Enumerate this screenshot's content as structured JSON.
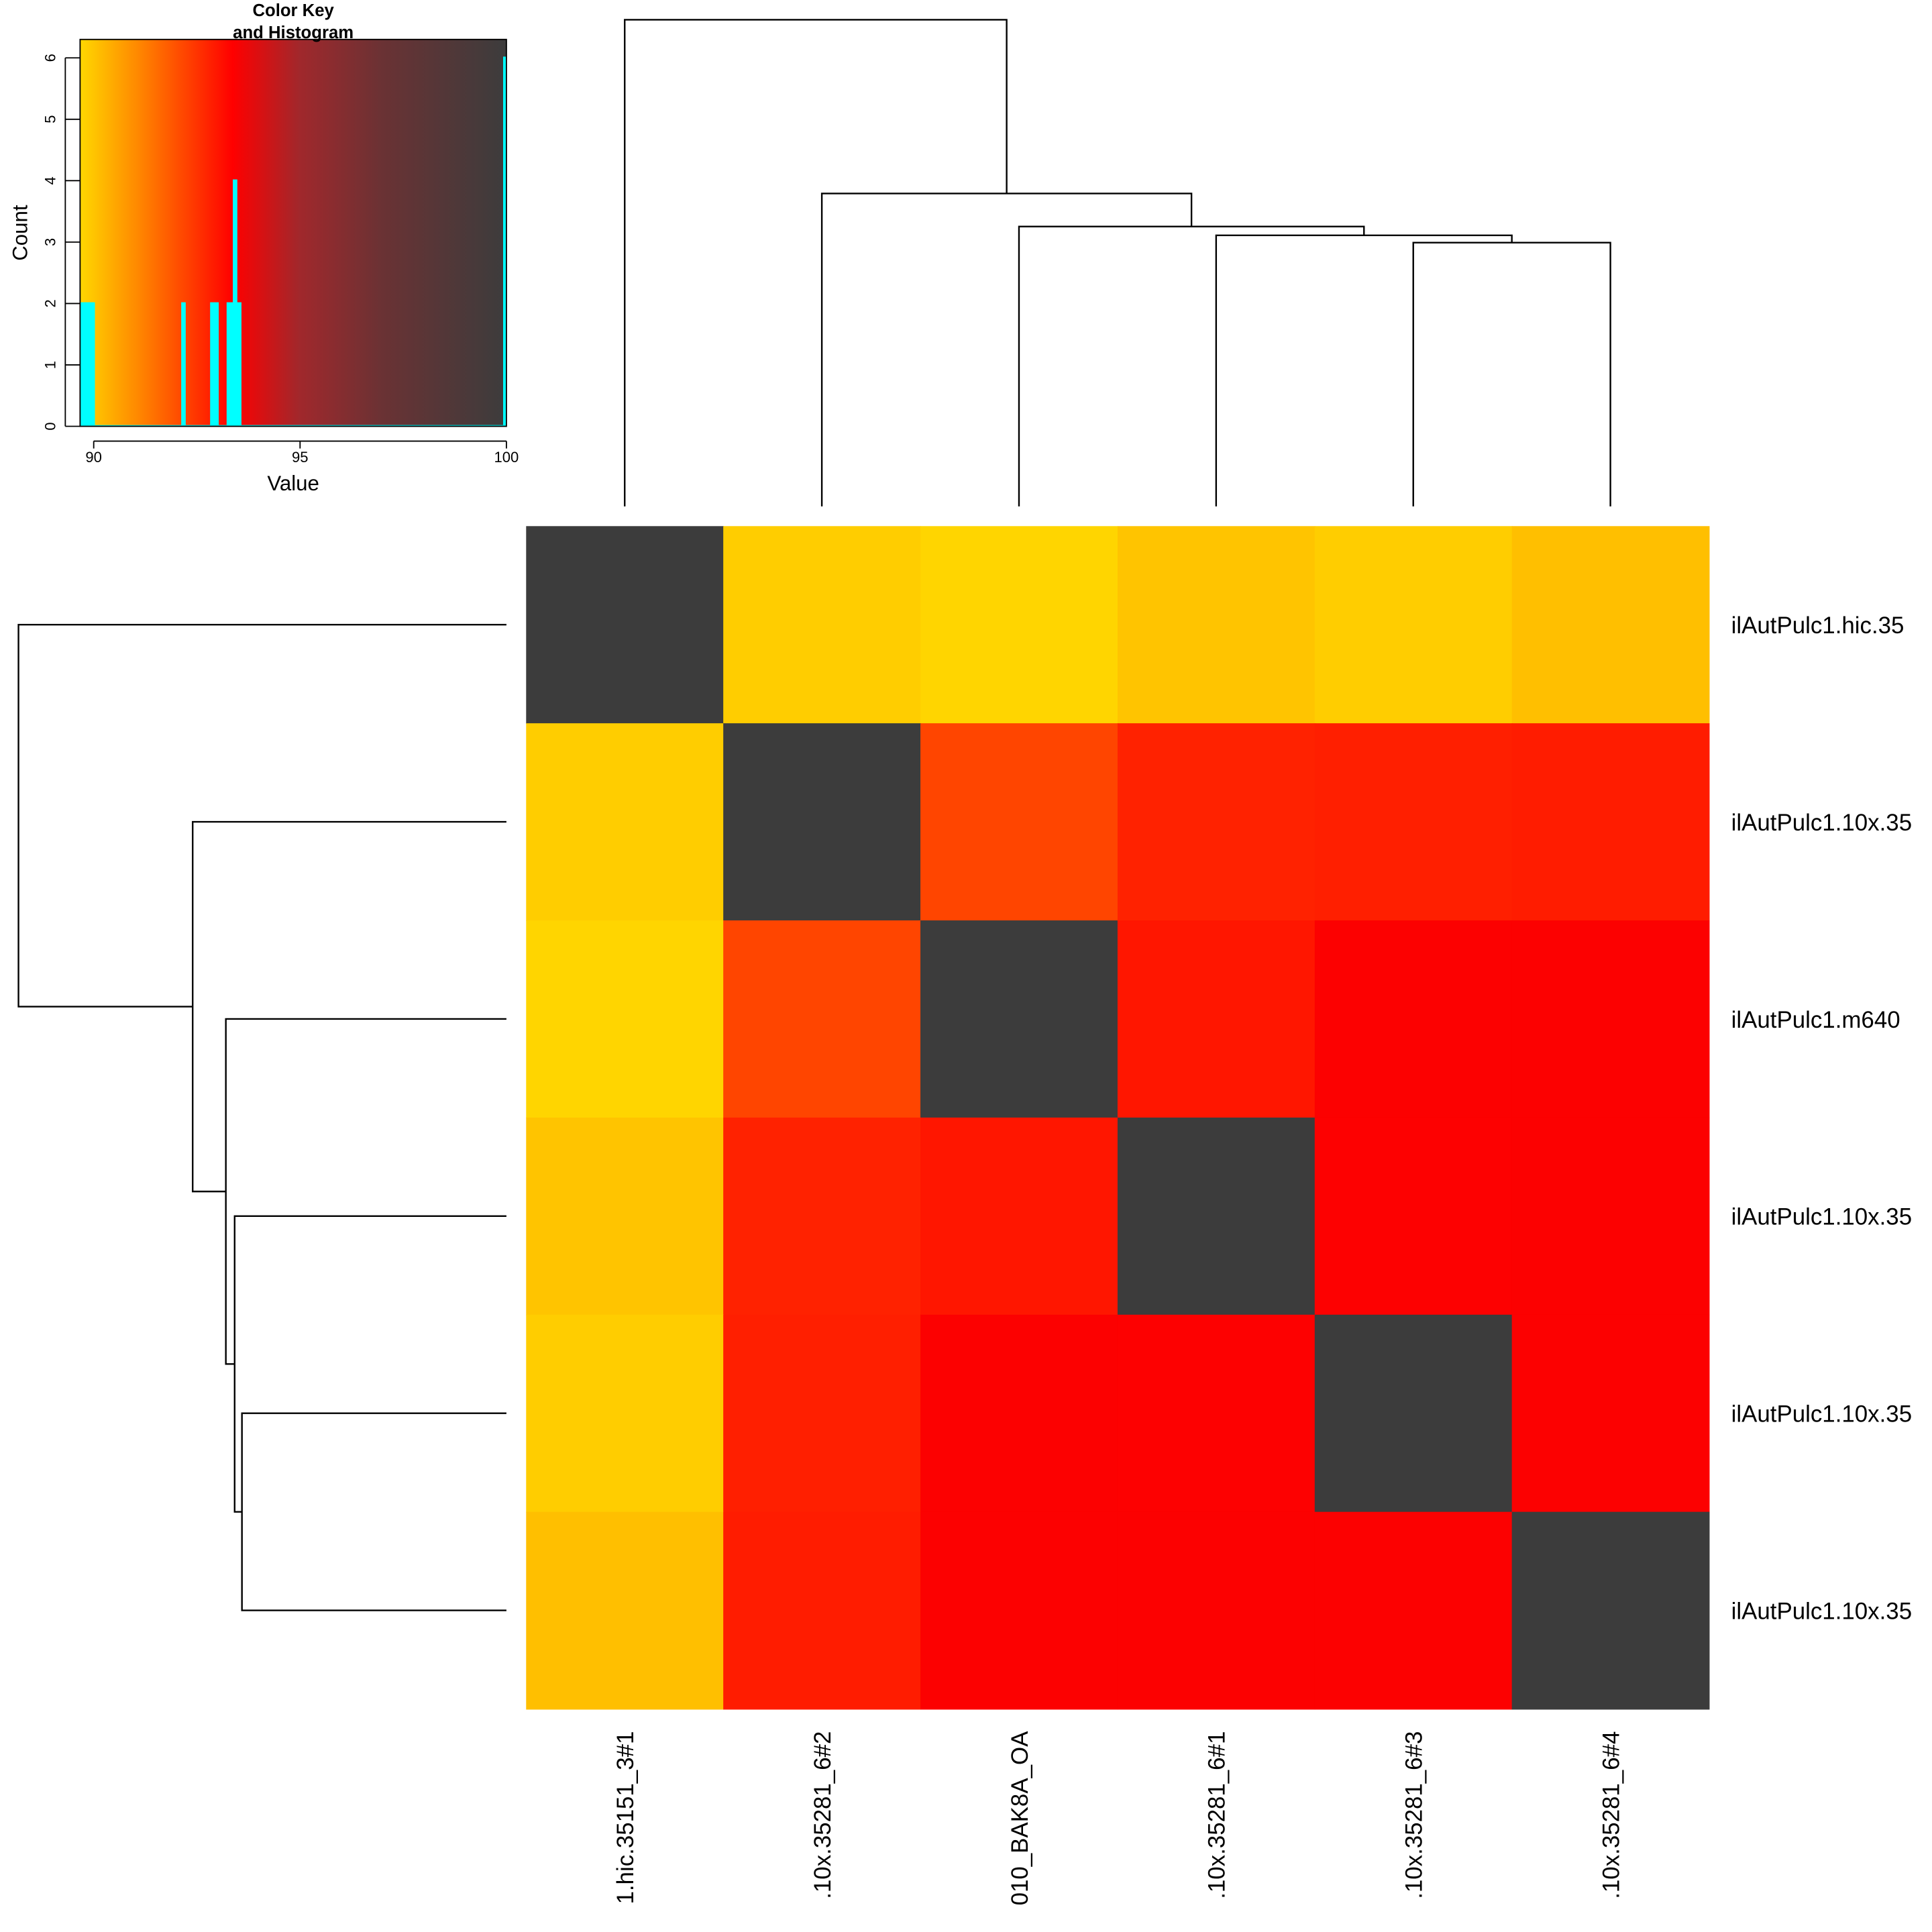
{
  "chart_data": {
    "type": "heatmap",
    "rows": [
      "ilAutPulc1.hic.35",
      "ilAutPulc1.10x.35",
      "ilAutPulc1.m640",
      "ilAutPulc1.10x.35",
      "ilAutPulc1.10x.35",
      "ilAutPulc1.10x.35"
    ],
    "columns": [
      "1.hic.35151_3#1",
      ".10x.35281_6#2",
      "010_BAK8A_OA",
      ".10x.35281_6#1",
      ".10x.35281_6#3",
      ".10x.35281_6#4"
    ],
    "values": [
      [
        100,
        89.85,
        89.7,
        90.0,
        89.85,
        90.1
      ],
      [
        89.85,
        100,
        92.2,
        92.8,
        92.85,
        92.9
      ],
      [
        89.7,
        92.2,
        100,
        93.0,
        93.42,
        93.42
      ],
      [
        90.0,
        92.8,
        93.0,
        100,
        93.4,
        93.42
      ],
      [
        89.85,
        92.85,
        93.42,
        93.4,
        100,
        93.42
      ],
      [
        90.1,
        92.9,
        93.42,
        93.42,
        93.42,
        100
      ]
    ],
    "dendrogram": {
      "leaf_order": [
        0,
        1,
        2,
        3,
        4,
        5
      ],
      "merges": [
        {
          "a": "4",
          "b": "5",
          "height": 0.542
        },
        {
          "a": "3",
          "b": "m1",
          "height": 0.557
        },
        {
          "a": "2",
          "b": "m2",
          "height": 0.575
        },
        {
          "a": "1",
          "b": "m3",
          "height": 0.643
        },
        {
          "a": "0",
          "b": "m4",
          "height": 1.0
        }
      ]
    },
    "color_key": {
      "title_line1": "Color Key",
      "title_line2": "and Histogram",
      "xlabel": "Value",
      "ylabel": "Count",
      "xlim": [
        89.67,
        100
      ],
      "ylim": [
        0,
        6.3
      ],
      "xticks": [
        "90",
        "95",
        "100"
      ],
      "xtick_values": [
        90,
        95,
        100
      ],
      "yticks": [
        "0",
        "1",
        "2",
        "3",
        "4",
        "5",
        "6"
      ],
      "yticks_values": [
        0,
        1,
        2,
        3,
        4,
        5,
        6
      ],
      "color_stops": [
        {
          "value": 89.67,
          "color": "#FFD700"
        },
        {
          "value": 91.0,
          "color": "#FF8C00"
        },
        {
          "value": 93.37,
          "color": "#FF0000"
        },
        {
          "value": 95.0,
          "color": "#A0282C"
        },
        {
          "value": 97.0,
          "color": "#6A3234"
        },
        {
          "value": 100,
          "color": "#3C3C3C"
        }
      ],
      "histogram_color": "#00FFFF",
      "histogram": [
        {
          "x0": 89.7,
          "x1": 89.8,
          "count": 2
        },
        {
          "x0": 89.8,
          "x1": 89.9,
          "count": 2
        },
        {
          "x0": 89.9,
          "x1": 90.0,
          "count": 2
        },
        {
          "x0": 92.15,
          "x1": 92.2,
          "count": 2
        },
        {
          "x0": 92.85,
          "x1": 92.9,
          "count": 2
        },
        {
          "x0": 92.95,
          "x1": 93.0,
          "count": 2
        },
        {
          "x0": 93.25,
          "x1": 93.3,
          "count": 2
        },
        {
          "x0": 93.35,
          "x1": 93.4,
          "count": 2
        },
        {
          "x0": 93.4,
          "x1": 93.45,
          "count": 4
        },
        {
          "x0": 93.5,
          "x1": 93.55,
          "count": 2
        },
        {
          "x0": 99.95,
          "x1": 100,
          "count": 6
        }
      ]
    }
  }
}
